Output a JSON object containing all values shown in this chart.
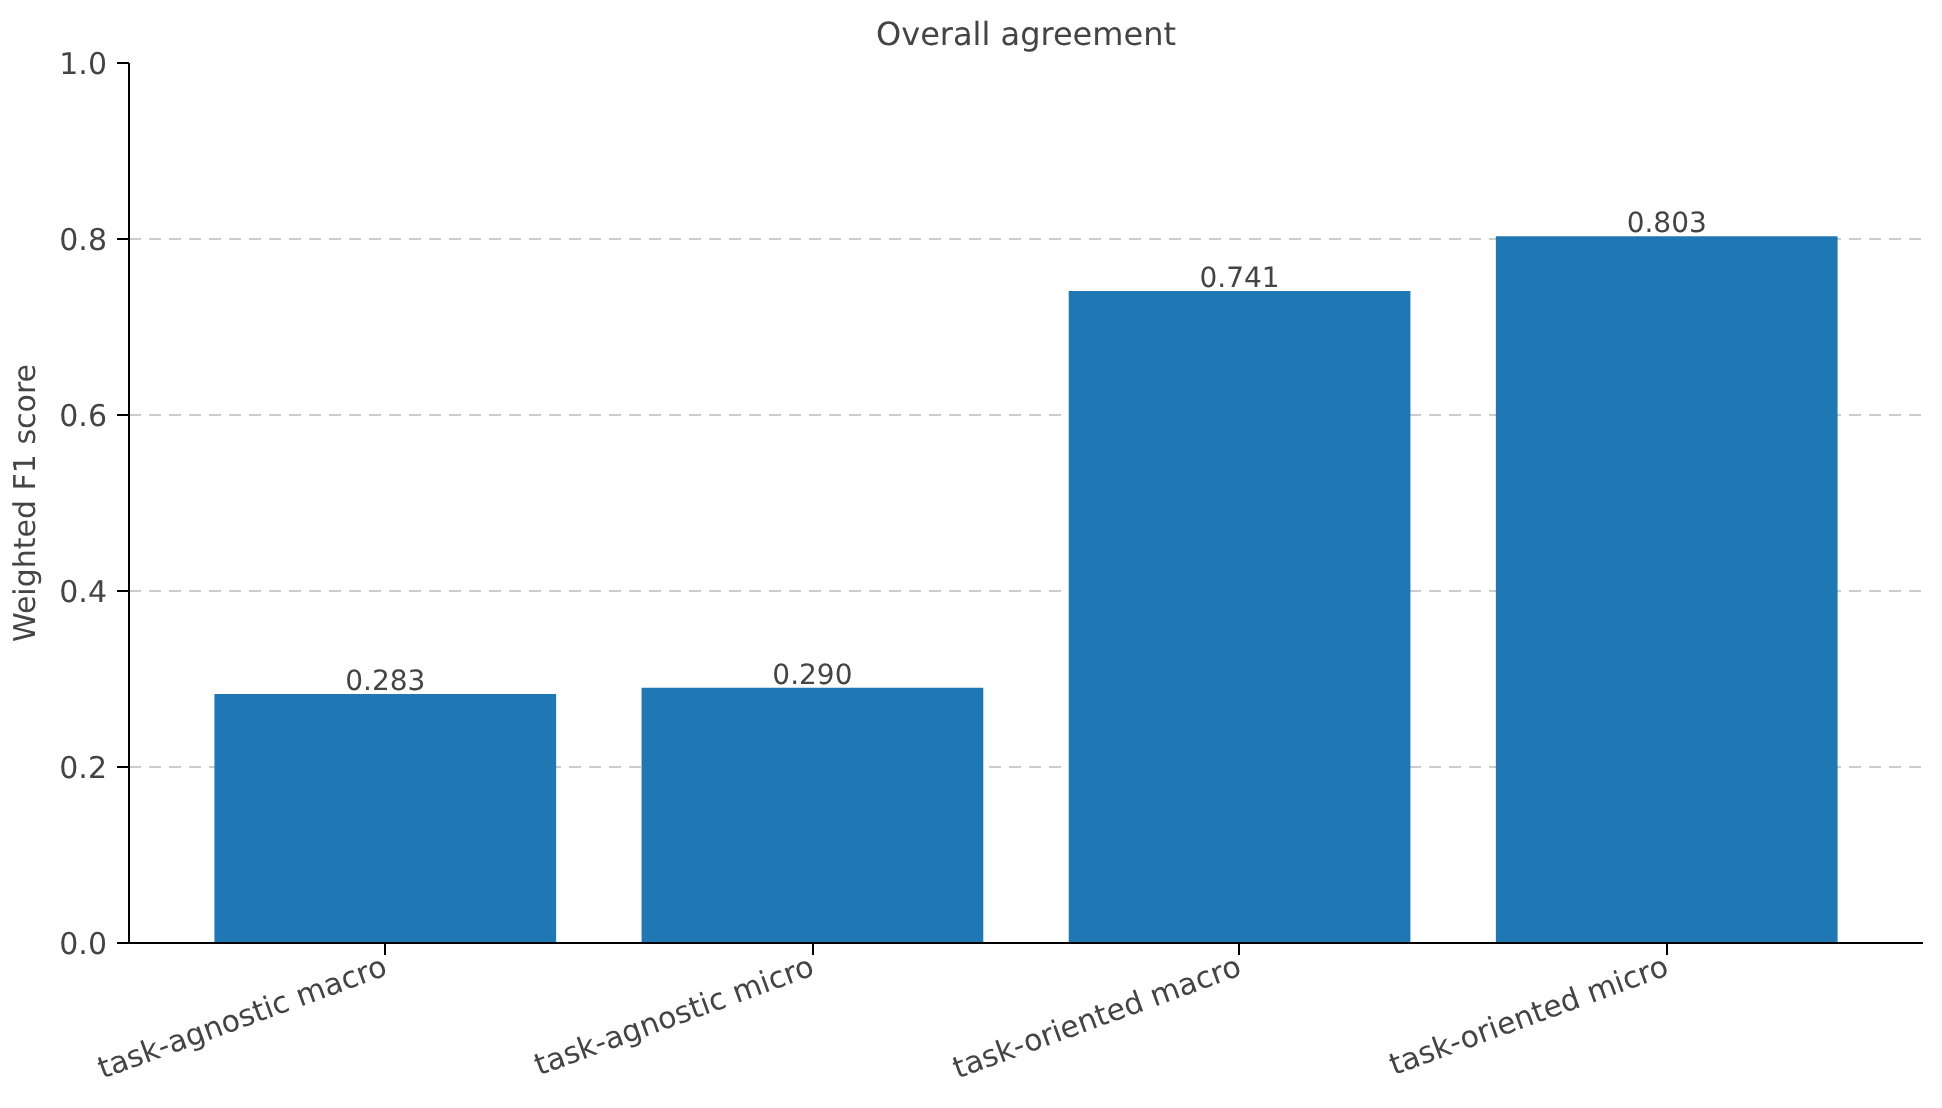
{
  "chart_data": {
    "type": "bar",
    "title": "Overall agreement",
    "ylabel": "Weighted F1 score",
    "categories": [
      "task-agnostic macro",
      "task-agnostic micro",
      "task-oriented macro",
      "task-oriented micro"
    ],
    "values": [
      0.283,
      0.29,
      0.741,
      0.803
    ],
    "color": "#1f77b4",
    "value_labels": [
      "0.283",
      "0.290",
      "0.741",
      "0.803"
    ],
    "ylim": [
      0,
      1
    ],
    "yticks": [
      {
        "value": 0,
        "label": "0.0"
      },
      {
        "value": 0.2,
        "label": "0.2"
      },
      {
        "value": 0.4,
        "label": "0.4"
      },
      {
        "value": 0.6,
        "label": "0.6"
      },
      {
        "value": 0.8,
        "label": "0.8"
      },
      {
        "value": 1,
        "label": "1.0"
      }
    ],
    "grid": "y"
  }
}
